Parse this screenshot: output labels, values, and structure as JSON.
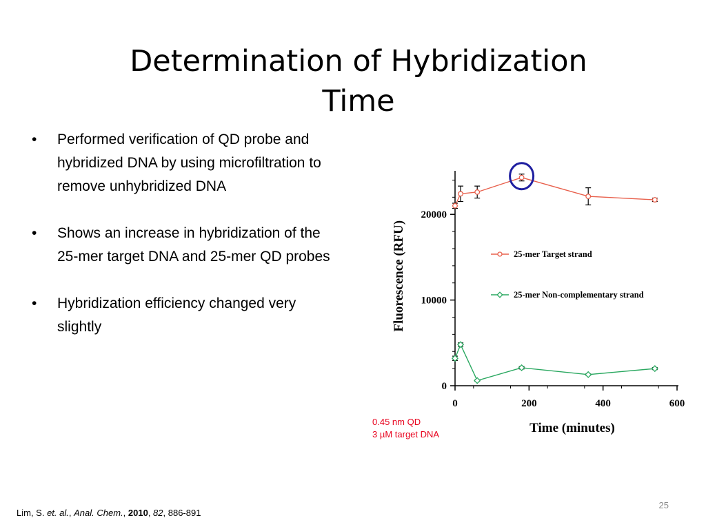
{
  "slide": {
    "title_line1": "Determination of Hybridization",
    "title_line2": "Time",
    "bullets": [
      "Performed verification of QD probe and hybridized DNA by using microfiltration to remove unhybridized DNA",
      "Shows an increase in hybridization of the 25-mer target DNA and 25-mer QD probes",
      "Hybridization efficiency changed very slightly"
    ],
    "bullet_glyph": "•",
    "note_line1": "0.45 nm QD",
    "note_line2": "3 µM target DNA",
    "citation": {
      "author": "Lim, S. ",
      "etal": "et. al.",
      "sep1": ", ",
      "journal": "Anal. Chem.",
      "sep2": ", ",
      "year": "2010",
      "sep3": ", ",
      "volume": "82",
      "pages": ", 886-891"
    },
    "slide_number": "25"
  },
  "chart_data": {
    "type": "line",
    "xlabel": "Time (minutes)",
    "ylabel": "Fluorescence (RFU)",
    "xlim": [
      0,
      600
    ],
    "ylim": [
      0,
      25000
    ],
    "xticks": [
      0,
      200,
      400,
      600
    ],
    "yticks": [
      0,
      10000,
      20000
    ],
    "grid": false,
    "legend_position": "center-right",
    "highlight": {
      "x": 180,
      "y": 24300,
      "color": "#1f1fa0"
    },
    "series": [
      {
        "name": "25-mer Target strand",
        "color": "#e8604c",
        "marker": "circle",
        "x": [
          0,
          15,
          60,
          180,
          360,
          540
        ],
        "y": [
          21000,
          22400,
          22600,
          24300,
          22100,
          21700
        ],
        "err": [
          300,
          900,
          700,
          400,
          1000,
          200
        ]
      },
      {
        "name": "25-mer Non-complementary strand",
        "color": "#2aa860",
        "marker": "diamond",
        "x": [
          0,
          15,
          60,
          180,
          360,
          540
        ],
        "y": [
          3200,
          4800,
          600,
          2100,
          1300,
          2000
        ],
        "err": [
          250,
          200,
          80,
          150,
          80,
          120
        ]
      }
    ]
  }
}
